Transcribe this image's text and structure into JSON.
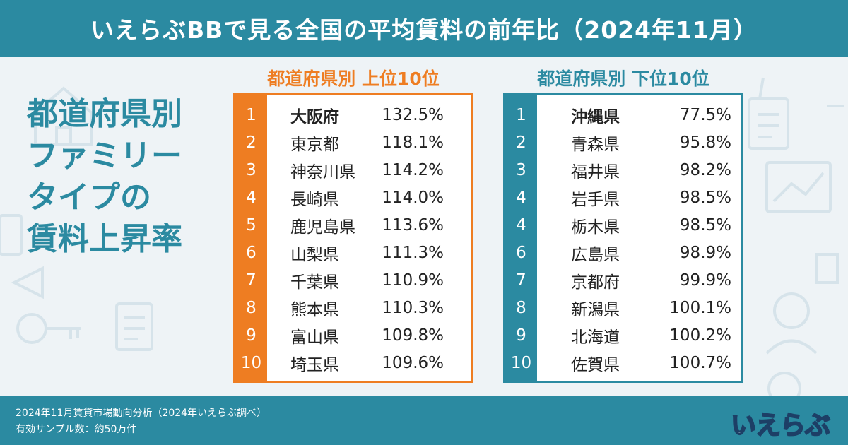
{
  "header": {
    "title": "いえらぶBBで見る全国の平均賃料の前年比（2024年11月）"
  },
  "side_title": {
    "lines": [
      "都道府県別",
      "ファミリー",
      "タイプの",
      "賃料上昇率"
    ]
  },
  "top10": {
    "heading": "都道府県別 上位10位",
    "rows": [
      {
        "rank": "1",
        "pref": "大阪府",
        "value": "132.5%"
      },
      {
        "rank": "2",
        "pref": "東京都",
        "value": "118.1%"
      },
      {
        "rank": "3",
        "pref": "神奈川県",
        "value": "114.2%"
      },
      {
        "rank": "4",
        "pref": "長崎県",
        "value": "114.0%"
      },
      {
        "rank": "5",
        "pref": "鹿児島県",
        "value": "113.6%"
      },
      {
        "rank": "6",
        "pref": "山梨県",
        "value": "111.3%"
      },
      {
        "rank": "7",
        "pref": "千葉県",
        "value": "110.9%"
      },
      {
        "rank": "8",
        "pref": "熊本県",
        "value": "110.3%"
      },
      {
        "rank": "9",
        "pref": "富山県",
        "value": "109.8%"
      },
      {
        "rank": "10",
        "pref": "埼玉県",
        "value": "109.6%"
      }
    ]
  },
  "bottom10": {
    "heading": "都道府県別 下位10位",
    "rows": [
      {
        "rank": "1",
        "pref": "沖縄県",
        "value": "77.5%"
      },
      {
        "rank": "2",
        "pref": "青森県",
        "value": "95.8%"
      },
      {
        "rank": "3",
        "pref": "福井県",
        "value": "98.2%"
      },
      {
        "rank": "4",
        "pref": "岩手県",
        "value": "98.5%"
      },
      {
        "rank": "4",
        "pref": "栃木県",
        "value": "98.5%"
      },
      {
        "rank": "6",
        "pref": "広島県",
        "value": "98.9%"
      },
      {
        "rank": "7",
        "pref": "京都府",
        "value": "99.9%"
      },
      {
        "rank": "8",
        "pref": "新潟県",
        "value": "100.1%"
      },
      {
        "rank": "9",
        "pref": "北海道",
        "value": "100.2%"
      },
      {
        "rank": "10",
        "pref": "佐賀県",
        "value": "100.7%"
      }
    ]
  },
  "footer": {
    "note1": "2024年11月賃貸市場動向分析（2024年いえらぶ調べ）",
    "note2": "有効サンプル数：約50万件",
    "logo": "いえらぶ"
  },
  "colors": {
    "primary": "#2b8aa1",
    "accent": "#ee7d22",
    "background": "#eef3f6"
  },
  "icons": [
    "house-icon",
    "key-icon",
    "document-icon",
    "chart-icon",
    "person-icon"
  ]
}
